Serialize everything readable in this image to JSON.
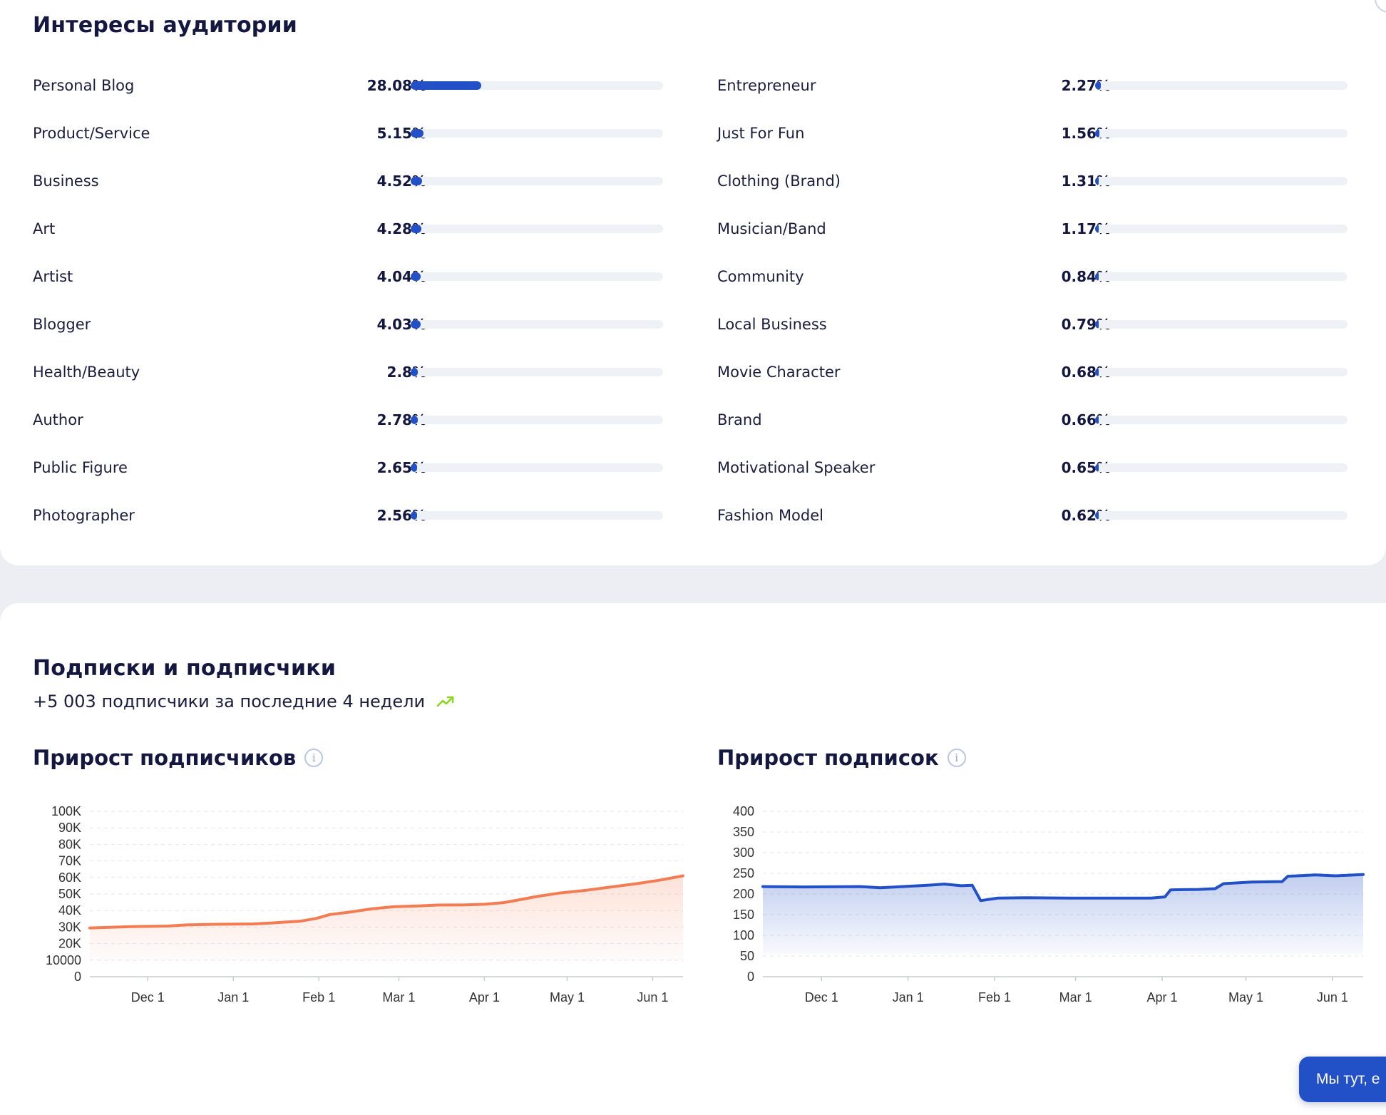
{
  "interests": {
    "title": "Интересы аудитории",
    "left": [
      {
        "label": "Personal Blog",
        "value": "28.08%",
        "pct": 28.08
      },
      {
        "label": "Product/Service",
        "value": "5.15%",
        "pct": 5.15
      },
      {
        "label": "Business",
        "value": "4.52%",
        "pct": 4.52
      },
      {
        "label": "Art",
        "value": "4.28%",
        "pct": 4.28
      },
      {
        "label": "Artist",
        "value": "4.04%",
        "pct": 4.04
      },
      {
        "label": "Blogger",
        "value": "4.03%",
        "pct": 4.03
      },
      {
        "label": "Health/Beauty",
        "value": "2.8%",
        "pct": 2.8
      },
      {
        "label": "Author",
        "value": "2.78%",
        "pct": 2.78
      },
      {
        "label": "Public Figure",
        "value": "2.65%",
        "pct": 2.65
      },
      {
        "label": "Photographer",
        "value": "2.56%",
        "pct": 2.56
      }
    ],
    "right": [
      {
        "label": "Entrepreneur",
        "value": "2.27%",
        "pct": 2.27
      },
      {
        "label": "Just For Fun",
        "value": "1.56%",
        "pct": 1.56
      },
      {
        "label": "Clothing (Brand)",
        "value": "1.31%",
        "pct": 1.31
      },
      {
        "label": "Musician/Band",
        "value": "1.17%",
        "pct": 1.17
      },
      {
        "label": "Community",
        "value": "0.84%",
        "pct": 0.84
      },
      {
        "label": "Local Business",
        "value": "0.79%",
        "pct": 0.79
      },
      {
        "label": "Movie Character",
        "value": "0.68%",
        "pct": 0.68
      },
      {
        "label": "Brand",
        "value": "0.66%",
        "pct": 0.66
      },
      {
        "label": "Motivational Speaker",
        "value": "0.65%",
        "pct": 0.65
      },
      {
        "label": "Fashion Model",
        "value": "0.62%",
        "pct": 0.62
      }
    ]
  },
  "subscriptions": {
    "title": "Подписки и подписчики",
    "growth_text": "+5 003 подписчики за последние 4 недели",
    "growth_icon": "trend-up-icon",
    "growth_color": "#8bd61f"
  },
  "chat": {
    "label": "Мы тут, е"
  },
  "chart_data": [
    {
      "type": "area",
      "title": "Прирост подписчиков",
      "color": "#f47c52",
      "ylim": [
        0,
        100000
      ],
      "yticks": [
        {
          "v": 0,
          "label": "0"
        },
        {
          "v": 10000,
          "label": "10000"
        },
        {
          "v": 20000,
          "label": "20K"
        },
        {
          "v": 30000,
          "label": "30K"
        },
        {
          "v": 40000,
          "label": "40K"
        },
        {
          "v": 50000,
          "label": "50K"
        },
        {
          "v": 60000,
          "label": "60K"
        },
        {
          "v": 70000,
          "label": "70K"
        },
        {
          "v": 80000,
          "label": "80K"
        },
        {
          "v": 90000,
          "label": "90K"
        },
        {
          "v": 100000,
          "label": "100K"
        }
      ],
      "xlim": [
        "2023-11-10",
        "2024-06-12"
      ],
      "xticks": [
        {
          "d": "2023-12-01",
          "label": "Dec 1"
        },
        {
          "d": "2024-01-01",
          "label": "Jan 1"
        },
        {
          "d": "2024-02-01",
          "label": "Feb 1"
        },
        {
          "d": "2024-03-01",
          "label": "Mar 1"
        },
        {
          "d": "2024-04-01",
          "label": "Apr 1"
        },
        {
          "d": "2024-05-01",
          "label": "May 1"
        },
        {
          "d": "2024-06-01",
          "label": "Jun 1"
        }
      ],
      "points": [
        [
          "2023-11-10",
          29500
        ],
        [
          "2023-11-25",
          30300
        ],
        [
          "2023-12-08",
          30600
        ],
        [
          "2023-12-15",
          31300
        ],
        [
          "2023-12-25",
          31700
        ],
        [
          "2024-01-08",
          31900
        ],
        [
          "2024-01-15",
          32500
        ],
        [
          "2024-01-20",
          33000
        ],
        [
          "2024-01-25",
          33500
        ],
        [
          "2024-01-31",
          35200
        ],
        [
          "2024-02-05",
          37600
        ],
        [
          "2024-02-12",
          39000
        ],
        [
          "2024-02-20",
          41000
        ],
        [
          "2024-02-28",
          42300
        ],
        [
          "2024-03-08",
          42800
        ],
        [
          "2024-03-15",
          43300
        ],
        [
          "2024-03-25",
          43400
        ],
        [
          "2024-04-01",
          43800
        ],
        [
          "2024-04-08",
          44800
        ],
        [
          "2024-04-14",
          46600
        ],
        [
          "2024-04-20",
          48500
        ],
        [
          "2024-04-28",
          50500
        ],
        [
          "2024-05-08",
          52300
        ],
        [
          "2024-05-18",
          54500
        ],
        [
          "2024-05-26",
          56200
        ],
        [
          "2024-06-04",
          58500
        ],
        [
          "2024-06-12",
          61000
        ]
      ]
    },
    {
      "type": "area",
      "title": "Прирост подписок",
      "color": "#2250c6",
      "ylim": [
        0,
        400
      ],
      "yticks": [
        {
          "v": 0,
          "label": "0"
        },
        {
          "v": 50,
          "label": "50"
        },
        {
          "v": 100,
          "label": "100"
        },
        {
          "v": 150,
          "label": "150"
        },
        {
          "v": 200,
          "label": "200"
        },
        {
          "v": 250,
          "label": "250"
        },
        {
          "v": 300,
          "label": "300"
        },
        {
          "v": 350,
          "label": "350"
        },
        {
          "v": 400,
          "label": "400"
        }
      ],
      "xlim": [
        "2023-11-10",
        "2024-06-12"
      ],
      "xticks": [
        {
          "d": "2023-12-01",
          "label": "Dec 1"
        },
        {
          "d": "2024-01-01",
          "label": "Jan 1"
        },
        {
          "d": "2024-02-01",
          "label": "Feb 1"
        },
        {
          "d": "2024-03-01",
          "label": "Mar 1"
        },
        {
          "d": "2024-04-01",
          "label": "Apr 1"
        },
        {
          "d": "2024-05-01",
          "label": "May 1"
        },
        {
          "d": "2024-06-01",
          "label": "Jun 1"
        }
      ],
      "points": [
        [
          "2023-11-10",
          218
        ],
        [
          "2023-11-25",
          217
        ],
        [
          "2023-12-15",
          218
        ],
        [
          "2023-12-22",
          215
        ],
        [
          "2024-01-05",
          220
        ],
        [
          "2024-01-10",
          222
        ],
        [
          "2024-01-14",
          224
        ],
        [
          "2024-01-20",
          220
        ],
        [
          "2024-01-24",
          221
        ],
        [
          "2024-01-27",
          184
        ],
        [
          "2024-02-02",
          190
        ],
        [
          "2024-02-12",
          191
        ],
        [
          "2024-02-28",
          190
        ],
        [
          "2024-03-15",
          190
        ],
        [
          "2024-03-28",
          190
        ],
        [
          "2024-04-02",
          193
        ],
        [
          "2024-04-04",
          210
        ],
        [
          "2024-04-14",
          211
        ],
        [
          "2024-04-20",
          213
        ],
        [
          "2024-04-23",
          225
        ],
        [
          "2024-05-03",
          229
        ],
        [
          "2024-05-14",
          230
        ],
        [
          "2024-05-16",
          243
        ],
        [
          "2024-05-26",
          246
        ],
        [
          "2024-06-02",
          244
        ],
        [
          "2024-06-12",
          247
        ]
      ]
    }
  ]
}
